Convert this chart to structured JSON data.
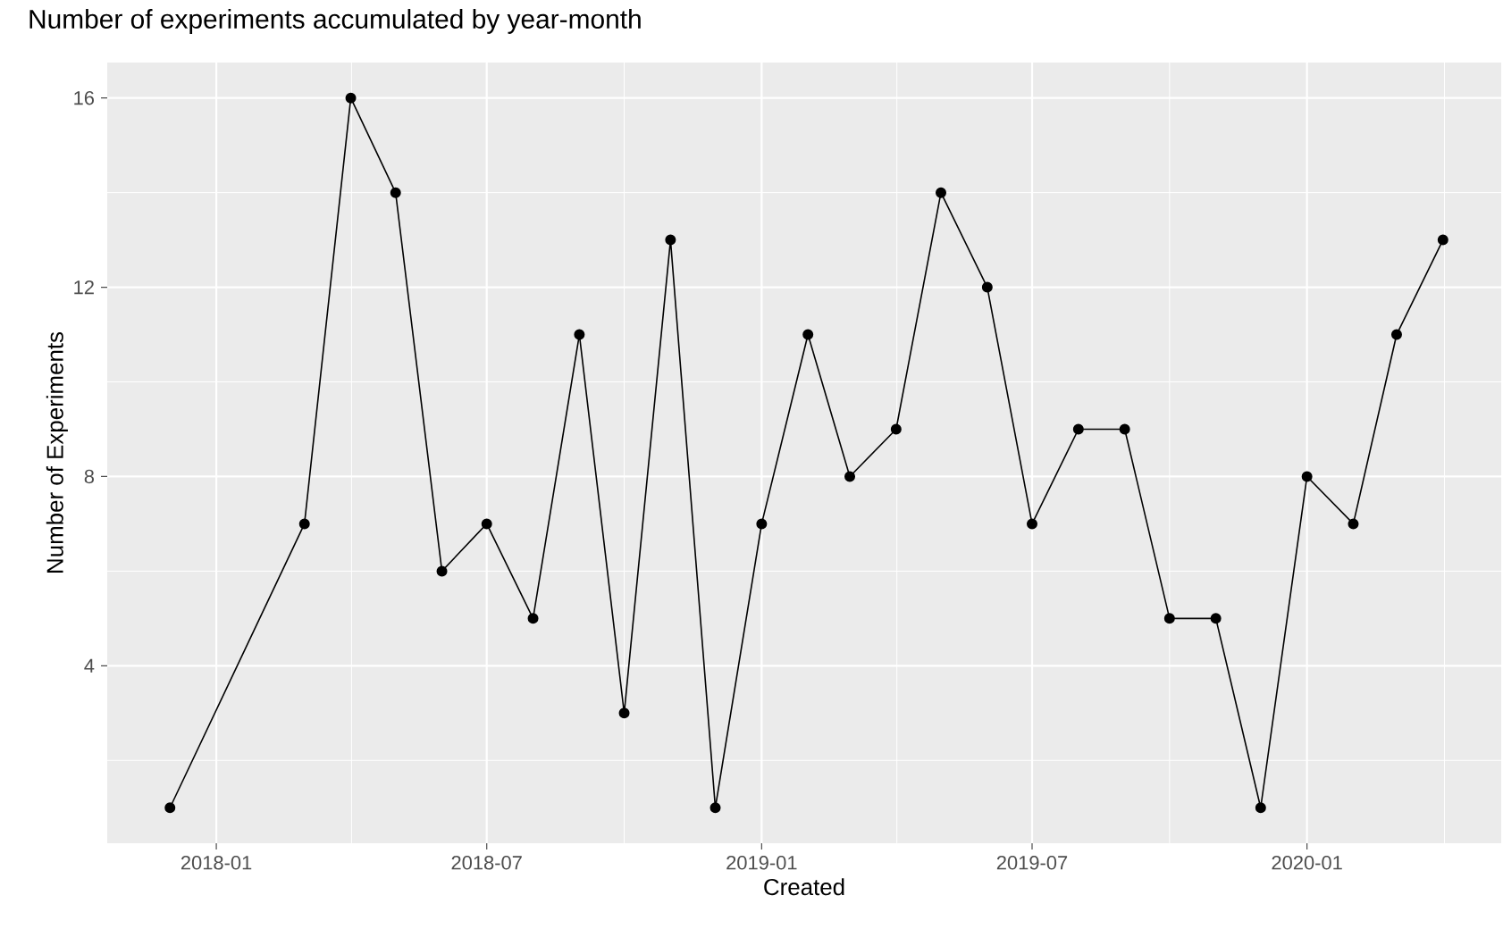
{
  "chart_data": {
    "type": "line",
    "title": "Number of experiments accumulated by year-month",
    "xlabel": "Created",
    "ylabel": "Number of Experiments",
    "x": [
      "2017-12",
      "2018-03",
      "2018-04",
      "2018-05",
      "2018-06",
      "2018-07",
      "2018-08",
      "2018-09",
      "2018-10",
      "2018-11",
      "2018-12",
      "2019-01",
      "2019-02",
      "2019-03",
      "2019-04",
      "2019-05",
      "2019-06",
      "2019-07",
      "2019-08",
      "2019-09",
      "2019-10",
      "2019-11",
      "2019-12",
      "2020-01",
      "2020-02",
      "2020-03",
      "2020-04"
    ],
    "series": [
      {
        "color": "#000000",
        "values": [
          1,
          7,
          16,
          14,
          6,
          7,
          5,
          11,
          3,
          13,
          1,
          7,
          11,
          8,
          9,
          14,
          12,
          7,
          9,
          9,
          5,
          5,
          1,
          8,
          7,
          11,
          13
        ]
      }
    ],
    "xlim": [
      "2017-10-20",
      "2020-05-10"
    ],
    "xticks": [
      "2018-01",
      "2018-07",
      "2019-01",
      "2019-07",
      "2020-01"
    ],
    "ylim": [
      0.25,
      16.75
    ],
    "yticks": [
      4,
      8,
      12,
      16
    ],
    "grid": true,
    "marker": "circle",
    "line_style": "solid"
  }
}
